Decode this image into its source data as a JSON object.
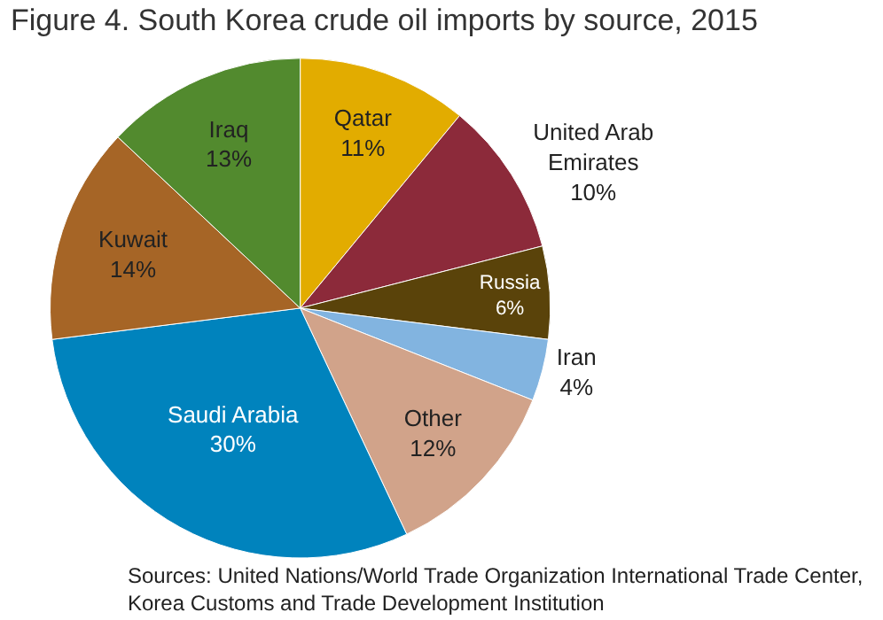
{
  "chart_data": {
    "type": "pie",
    "title": "Figure 4. South Korea crude oil imports by source, 2015",
    "categories": [
      "Qatar",
      "United Arab Emirates",
      "Russia",
      "Iran",
      "Other",
      "Saudi Arabia",
      "Kuwait",
      "Iraq"
    ],
    "values": [
      11,
      10,
      6,
      4,
      12,
      30,
      14,
      13
    ],
    "value_labels": [
      "11%",
      "10%",
      "6%",
      "4%",
      "12%",
      "30%",
      "14%",
      "13%"
    ],
    "colors": [
      "#e2ac00",
      "#8c2a3a",
      "#5a430a",
      "#82b4e0",
      "#d1a38a",
      "#0083bd",
      "#a66526",
      "#528a2e"
    ],
    "annotations": [
      "Sources: United Nations/World Trade Organization International Trade Center, Korea Customs and Trade Development Institution"
    ],
    "legend": false
  }
}
